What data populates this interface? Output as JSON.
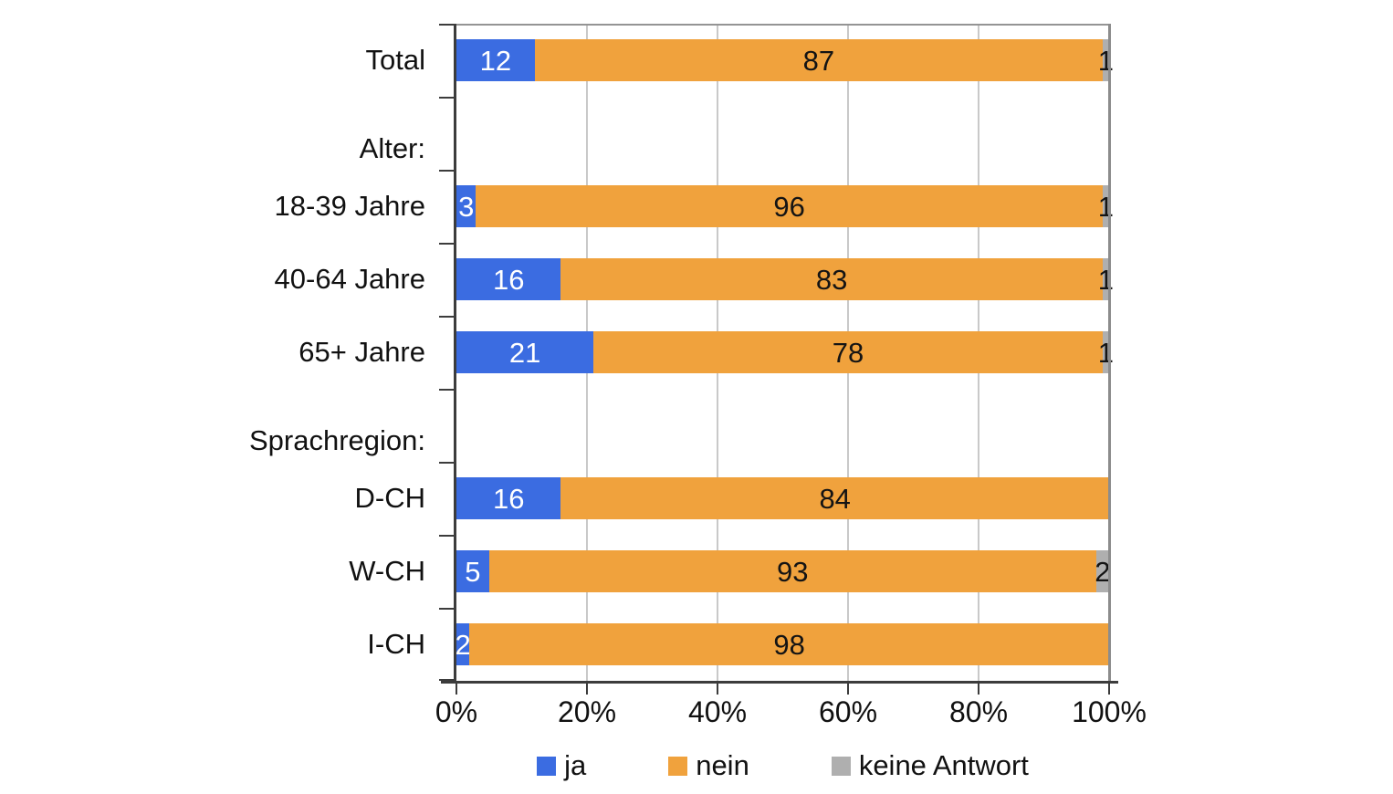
{
  "chart_data": {
    "type": "bar",
    "orientation": "horizontal",
    "stacked": true,
    "unit": "percent",
    "title": "",
    "xlabel": "",
    "ylabel": "",
    "xlim": [
      0,
      100
    ],
    "x_ticks": [
      "0%",
      "20%",
      "40%",
      "60%",
      "80%",
      "100%"
    ],
    "grid": "vertical",
    "series_order": [
      "ja",
      "nein",
      "keine_antwort"
    ],
    "series_colors": {
      "ja": "#3b6ce1",
      "nein": "#f0a23d",
      "keine_antwort": "#afafaf"
    },
    "rows": [
      {
        "type": "bar",
        "label": "Total",
        "values": {
          "ja": 12,
          "nein": 87,
          "keine_antwort": 1
        }
      },
      {
        "type": "header",
        "label": "Alter:"
      },
      {
        "type": "bar",
        "label": "18-39 Jahre",
        "values": {
          "ja": 3,
          "nein": 96,
          "keine_antwort": 1
        }
      },
      {
        "type": "bar",
        "label": "40-64 Jahre",
        "values": {
          "ja": 16,
          "nein": 83,
          "keine_antwort": 1
        }
      },
      {
        "type": "bar",
        "label": "65+ Jahre",
        "values": {
          "ja": 21,
          "nein": 78,
          "keine_antwort": 1
        }
      },
      {
        "type": "header",
        "label": "Sprachregion:"
      },
      {
        "type": "bar",
        "label": "D-CH",
        "values": {
          "ja": 16,
          "nein": 84,
          "keine_antwort": 0
        }
      },
      {
        "type": "bar",
        "label": "W-CH",
        "values": {
          "ja": 5,
          "nein": 93,
          "keine_antwort": 2
        }
      },
      {
        "type": "bar",
        "label": "I-CH",
        "values": {
          "ja": 2,
          "nein": 98,
          "keine_antwort": 0
        }
      }
    ],
    "legend": {
      "position": "bottom",
      "items": [
        {
          "key": "ja",
          "label": "ja"
        },
        {
          "key": "nein",
          "label": "nein"
        },
        {
          "key": "keine_antwort",
          "label": "keine Antwort"
        }
      ]
    }
  }
}
